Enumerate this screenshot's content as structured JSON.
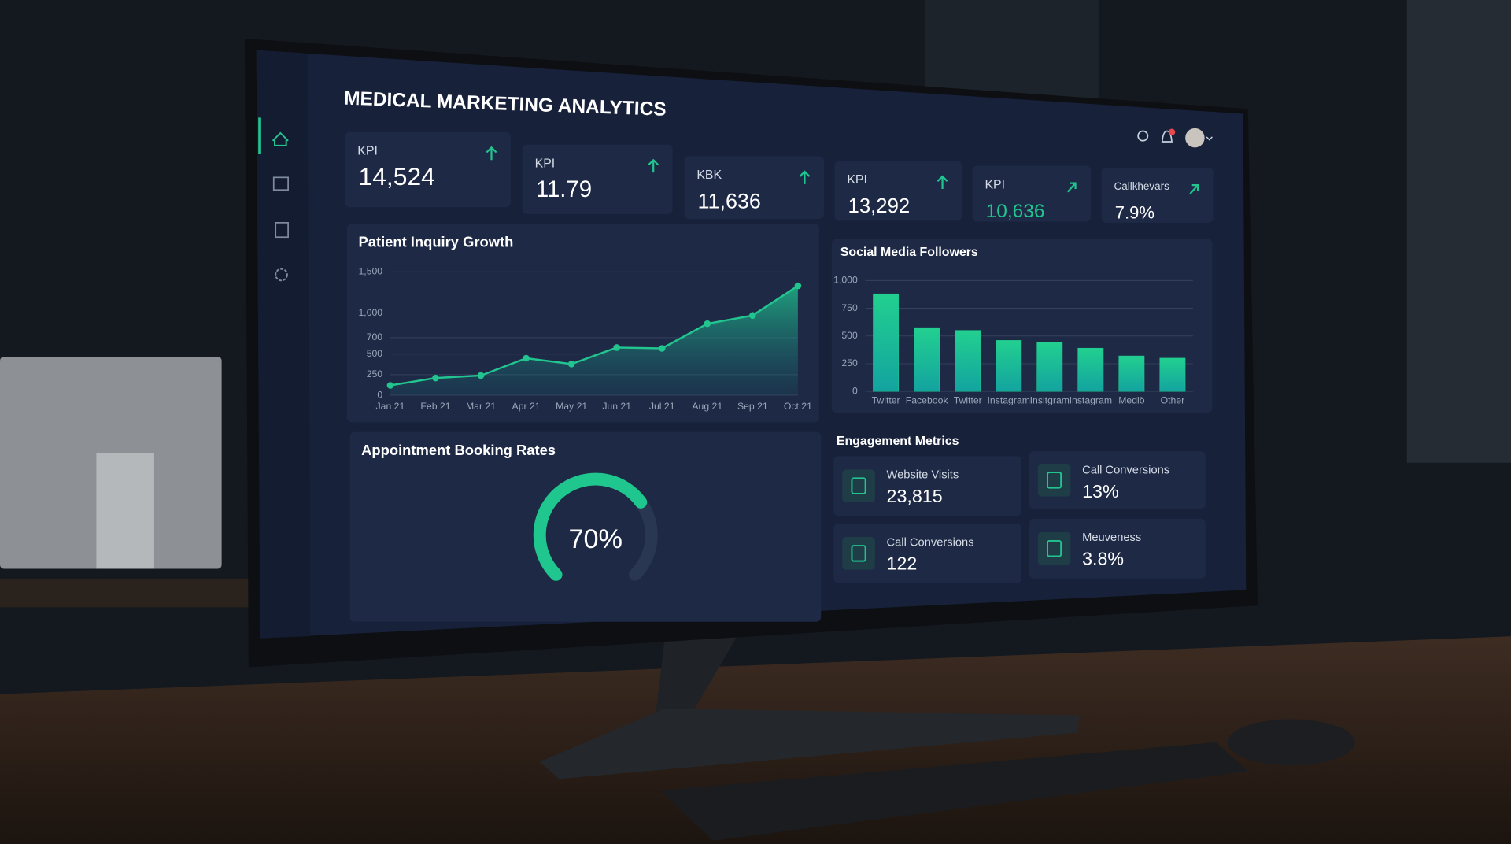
{
  "header": {
    "title": "MEDICAL MARKETING ANALYTICS"
  },
  "kpis": [
    {
      "label": "KPI",
      "value": "14,524"
    },
    {
      "label": "KPI",
      "value": "11.79"
    },
    {
      "label": "KBK",
      "value": "11,636"
    },
    {
      "label": "KPI",
      "value": "13,292"
    },
    {
      "label": "KPI",
      "value": "10,636"
    },
    {
      "label": "Callkhevars",
      "value": "7.9%"
    }
  ],
  "chart_data": [
    {
      "type": "line",
      "title": "Patient Inquiry Growth",
      "categories": [
        "Jan 21",
        "Feb 21",
        "Mar 21",
        "Apr 21",
        "May 21",
        "Jun 21",
        "Jul 21",
        "Aug 21",
        "Sep 21",
        "Oct 21"
      ],
      "values": [
        120,
        210,
        240,
        450,
        380,
        580,
        570,
        870,
        970,
        1330
      ],
      "color": "#22c58f",
      "ylim": [
        0,
        1500
      ],
      "yticks": [
        0,
        250,
        500,
        700,
        {
          "value": 1000,
          "label": "1,000"
        },
        {
          "value": 1500,
          "label": "1,500"
        }
      ],
      "grid": true
    },
    {
      "type": "bar",
      "title": "Social Media Followers",
      "categories": [
        "Twitter",
        "Facebook",
        "Twitter",
        "Instagram",
        "Insitgram",
        "Instagram",
        "Medlö",
        "Other"
      ],
      "values": [
        880,
        575,
        550,
        460,
        445,
        390,
        320,
        300
      ],
      "color": "#1fc78f",
      "ylim": [
        0,
        1000
      ],
      "yticks": [
        0,
        250,
        500,
        750,
        {
          "value": 1000,
          "label": "1,000"
        }
      ],
      "grid": true
    },
    {
      "type": "gauge",
      "title": "Appointment Booking Rates",
      "values": [
        70
      ],
      "value_labels": [
        "70%"
      ],
      "ylim": [
        0,
        100
      ],
      "color": "#1fc78f"
    }
  ],
  "engagement": {
    "title": "Engagement Metrics",
    "items": [
      {
        "label": "Website Visits",
        "value": "23,815"
      },
      {
        "label": "Call Conversions",
        "value": "13%"
      },
      {
        "label": "Call Conversions",
        "value": "122"
      },
      {
        "label": "Meuveness",
        "value": "3.8%"
      }
    ]
  }
}
